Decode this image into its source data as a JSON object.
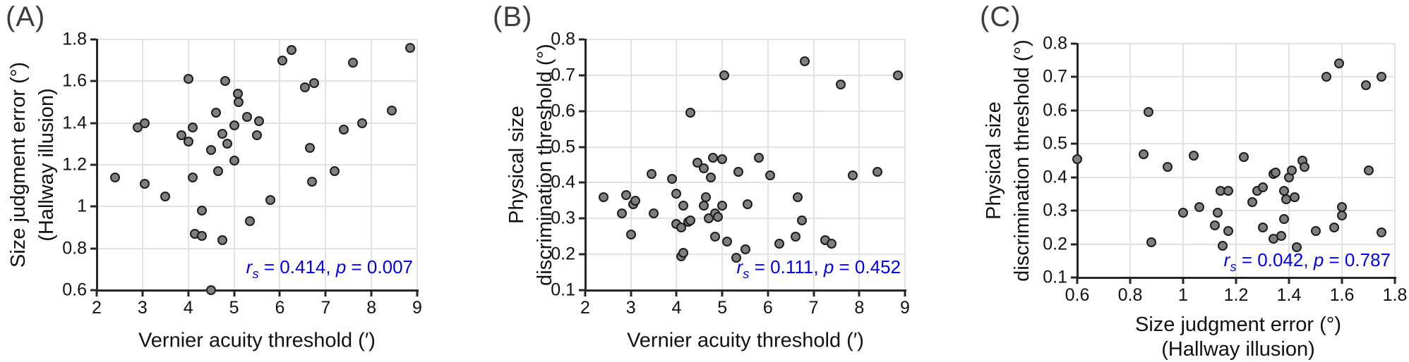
{
  "figure_title": "Correlation scatter plots",
  "colors": {
    "marker_fill": "#7f7f7f",
    "marker_edge": "#1c1c1c",
    "stats_text": "#0000ee",
    "grid": "#e2e2e2",
    "axis": "#262626"
  },
  "chart_data": [
    {
      "type": "scatter",
      "panel_label": "(A)",
      "xlabel_lines": [
        "Vernier acuity threshold (′)"
      ],
      "ylabel_lines": [
        "Size judgment error (°)",
        "(Hallway illusion)"
      ],
      "xlim": [
        2,
        9
      ],
      "ylim": [
        0.6,
        1.8
      ],
      "xticks": [
        2,
        3,
        4,
        5,
        6,
        7,
        8,
        9
      ],
      "xtick_labels": [
        "2",
        "3",
        "4",
        "5",
        "6",
        "7",
        "8",
        "9"
      ],
      "yticks": [
        1.8,
        1.6,
        1.4,
        1.2,
        1,
        0.8,
        0.6
      ],
      "ytick_labels": [
        "1.8",
        "1.6",
        "1.4",
        "1.2",
        "1",
        "0.8",
        "0.6"
      ],
      "grid": true,
      "annotation": {
        "r_sym": "r",
        "r_sub": "s",
        "r_rest": " = 0.414, ",
        "p_sym": "p",
        "p_rest": " = 0.007"
      },
      "points": [
        [
          2.4,
          1.14
        ],
        [
          2.9,
          1.38
        ],
        [
          3.05,
          1.4
        ],
        [
          3.05,
          1.11
        ],
        [
          3.5,
          1.05
        ],
        [
          3.85,
          1.34
        ],
        [
          4.0,
          1.61
        ],
        [
          4.0,
          1.31
        ],
        [
          4.1,
          1.38
        ],
        [
          4.1,
          1.14
        ],
        [
          4.15,
          0.87
        ],
        [
          4.3,
          0.86
        ],
        [
          4.3,
          0.98
        ],
        [
          4.5,
          0.6
        ],
        [
          4.5,
          1.27
        ],
        [
          4.6,
          1.45
        ],
        [
          4.65,
          1.17
        ],
        [
          4.75,
          1.35
        ],
        [
          4.8,
          1.6
        ],
        [
          4.75,
          0.84
        ],
        [
          4.85,
          1.3
        ],
        [
          5.0,
          1.39
        ],
        [
          5.0,
          1.22
        ],
        [
          5.08,
          1.54
        ],
        [
          5.1,
          1.5
        ],
        [
          5.28,
          1.43
        ],
        [
          5.35,
          0.93
        ],
        [
          5.55,
          1.41
        ],
        [
          5.5,
          1.34
        ],
        [
          5.8,
          1.03
        ],
        [
          6.05,
          1.7
        ],
        [
          6.25,
          1.75
        ],
        [
          6.55,
          1.57
        ],
        [
          6.75,
          1.59
        ],
        [
          6.65,
          1.28
        ],
        [
          6.7,
          1.12
        ],
        [
          7.2,
          1.17
        ],
        [
          7.4,
          1.37
        ],
        [
          7.6,
          1.69
        ],
        [
          7.8,
          1.4
        ],
        [
          8.45,
          1.46
        ],
        [
          8.85,
          1.76
        ]
      ]
    },
    {
      "type": "scatter",
      "panel_label": "(B)",
      "xlabel_lines": [
        "Vernier acuity threshold (′)"
      ],
      "ylabel_lines": [
        "Physical size",
        "discrimination threshold (°)"
      ],
      "xlim": [
        2,
        9
      ],
      "ylim": [
        0.1,
        0.8
      ],
      "xticks": [
        2,
        3,
        4,
        5,
        6,
        7,
        8,
        9
      ],
      "xtick_labels": [
        "2",
        "3",
        "4",
        "5",
        "6",
        "7",
        "8",
        "9"
      ],
      "yticks": [
        0.8,
        0.7,
        0.6,
        0.5,
        0.4,
        0.3,
        0.2,
        0.1
      ],
      "ytick_labels": [
        "0.8",
        "0.7",
        "0.6",
        "0.5",
        "0.4",
        "0.3",
        "0.2",
        "0.1"
      ],
      "grid": true,
      "annotation": {
        "r_sym": "r",
        "r_sub": "s",
        "r_rest": " = 0.111, ",
        "p_sym": "p",
        "p_rest": " = 0.452"
      },
      "points": [
        [
          2.4,
          0.36
        ],
        [
          2.8,
          0.315
        ],
        [
          2.9,
          0.365
        ],
        [
          3.05,
          0.34
        ],
        [
          3.1,
          0.35
        ],
        [
          3.0,
          0.255
        ],
        [
          3.45,
          0.425
        ],
        [
          3.5,
          0.315
        ],
        [
          3.9,
          0.41
        ],
        [
          4.0,
          0.37
        ],
        [
          4.15,
          0.335
        ],
        [
          4.0,
          0.285
        ],
        [
          4.1,
          0.275
        ],
        [
          4.25,
          0.29
        ],
        [
          4.3,
          0.295
        ],
        [
          4.1,
          0.195
        ],
        [
          4.15,
          0.205
        ],
        [
          4.3,
          0.595
        ],
        [
          4.45,
          0.455
        ],
        [
          4.6,
          0.44
        ],
        [
          4.8,
          0.47
        ],
        [
          4.75,
          0.415
        ],
        [
          5.0,
          0.465
        ],
        [
          5.05,
          0.7
        ],
        [
          5.35,
          0.43
        ],
        [
          4.6,
          0.335
        ],
        [
          4.65,
          0.36
        ],
        [
          4.7,
          0.3
        ],
        [
          4.85,
          0.315
        ],
        [
          4.9,
          0.305
        ],
        [
          5.0,
          0.335
        ],
        [
          4.85,
          0.25
        ],
        [
          5.1,
          0.235
        ],
        [
          5.5,
          0.215
        ],
        [
          5.3,
          0.19
        ],
        [
          5.55,
          0.34
        ],
        [
          5.8,
          0.47
        ],
        [
          6.05,
          0.42
        ],
        [
          6.25,
          0.23
        ],
        [
          6.6,
          0.25
        ],
        [
          6.65,
          0.36
        ],
        [
          6.75,
          0.295
        ],
        [
          6.8,
          0.74
        ],
        [
          7.25,
          0.24
        ],
        [
          7.4,
          0.23
        ],
        [
          7.6,
          0.675
        ],
        [
          7.85,
          0.42
        ],
        [
          8.4,
          0.43
        ],
        [
          8.85,
          0.7
        ]
      ]
    },
    {
      "type": "scatter",
      "panel_label": "(C)",
      "xlabel_lines": [
        "Size judgment error (°)",
        "(Hallway illusion)"
      ],
      "ylabel_lines": [
        "Physical size",
        "discrimination threshold (°)"
      ],
      "xlim": [
        0.6,
        1.8
      ],
      "ylim": [
        0.1,
        0.8
      ],
      "xticks": [
        0.6,
        0.8,
        1,
        1.2,
        1.4,
        1.6,
        1.8
      ],
      "xtick_labels": [
        "0.6",
        "0.8",
        "1",
        "1.2",
        "1.4",
        "1.6",
        "1.8"
      ],
      "yticks": [
        0.8,
        0.7,
        0.6,
        0.5,
        0.4,
        0.3,
        0.2,
        0.1
      ],
      "ytick_labels": [
        "0.8",
        "0.7",
        "0.6",
        "0.5",
        "0.4",
        "0.3",
        "0.2",
        "0.1"
      ],
      "grid": true,
      "annotation": {
        "r_sym": "r",
        "r_sub": "s",
        "r_rest": " = 0.042, ",
        "p_sym": "p",
        "p_rest": " = 0.787"
      },
      "points": [
        [
          0.6,
          0.455
        ],
        [
          0.85,
          0.47
        ],
        [
          0.87,
          0.595
        ],
        [
          0.88,
          0.205
        ],
        [
          0.94,
          0.43
        ],
        [
          1.0,
          0.295
        ],
        [
          1.04,
          0.465
        ],
        [
          1.06,
          0.31
        ],
        [
          1.12,
          0.255
        ],
        [
          1.13,
          0.295
        ],
        [
          1.14,
          0.36
        ],
        [
          1.17,
          0.36
        ],
        [
          1.15,
          0.195
        ],
        [
          1.17,
          0.24
        ],
        [
          1.23,
          0.46
        ],
        [
          1.26,
          0.325
        ],
        [
          1.28,
          0.36
        ],
        [
          1.3,
          0.37
        ],
        [
          1.3,
          0.25
        ],
        [
          1.34,
          0.41
        ],
        [
          1.35,
          0.415
        ],
        [
          1.34,
          0.215
        ],
        [
          1.37,
          0.225
        ],
        [
          1.38,
          0.36
        ],
        [
          1.38,
          0.275
        ],
        [
          1.39,
          0.335
        ],
        [
          1.4,
          0.4
        ],
        [
          1.41,
          0.42
        ],
        [
          1.42,
          0.34
        ],
        [
          1.43,
          0.19
        ],
        [
          1.45,
          0.45
        ],
        [
          1.46,
          0.43
        ],
        [
          1.5,
          0.24
        ],
        [
          1.54,
          0.7
        ],
        [
          1.57,
          0.25
        ],
        [
          1.59,
          0.74
        ],
        [
          1.6,
          0.31
        ],
        [
          1.6,
          0.285
        ],
        [
          1.69,
          0.675
        ],
        [
          1.7,
          0.42
        ],
        [
          1.75,
          0.7
        ],
        [
          1.75,
          0.235
        ]
      ]
    }
  ]
}
